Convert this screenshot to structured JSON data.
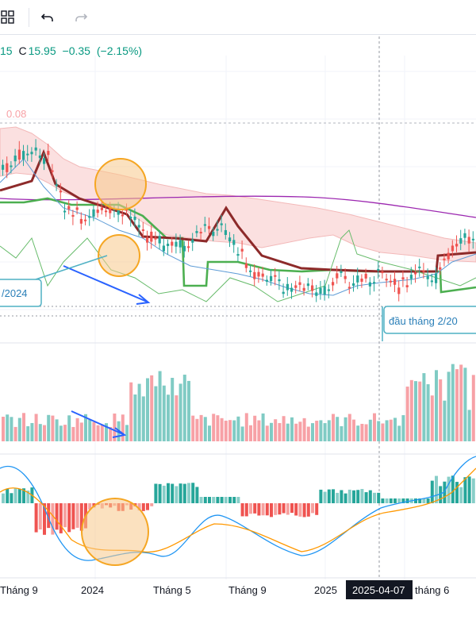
{
  "toolbar": {
    "grid_icon": "grid-icon",
    "undo_icon": "undo-icon",
    "redo_icon": "redo-icon"
  },
  "legend": {
    "close_partial": "15",
    "close_label": "C",
    "close_value": "15.95",
    "change": "−0.35",
    "change_pct": "(−2.15%)"
  },
  "price_labels": {
    "top_level": "0.08"
  },
  "annotations": {
    "left_box": "/2024",
    "right_box": "đầu tháng 2/20"
  },
  "x_axis": {
    "labels": [
      "Tháng 9",
      "2024",
      "Tháng 5",
      "Tháng 9",
      "2025",
      "tháng 6"
    ],
    "cursor_label": "2025-04-07"
  },
  "colors": {
    "up": "#26a69a",
    "down": "#ef5350",
    "up_vol": "#80cbc4",
    "down_vol": "#f7a1a6",
    "kijun": "#4caf50",
    "tenkan": "#8d2a2a",
    "macd": "#2196f3",
    "signal": "#ff9800",
    "long_ma": "#9c27b0",
    "cloud": "#fbe0e0",
    "circle": "#f7c98a",
    "arrow": "#2962ff"
  }
}
